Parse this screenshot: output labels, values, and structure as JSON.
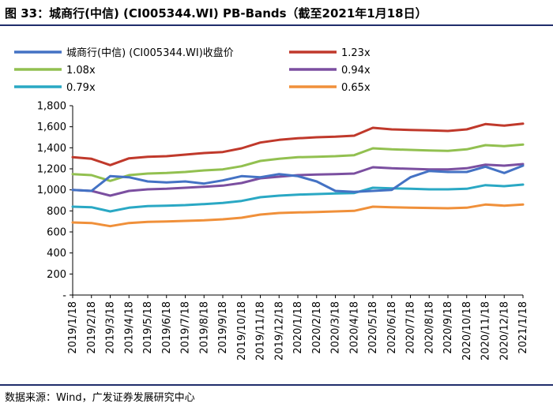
{
  "figure_title": "图 33：城商行(中信) (CI005344.WI) PB-Bands（截至2021年1月18日）",
  "source": "数据来源：Wind，广发证券发展研究中心",
  "chart_data": {
    "type": "line",
    "title": "城商行(中信) (CI005344.WI) PB-Bands",
    "xlabel": "",
    "ylabel": "",
    "ylim": [
      0,
      1800
    ],
    "yticks": [
      0,
      200,
      400,
      600,
      800,
      1000,
      1200,
      1400,
      1600,
      1800
    ],
    "ytick_labels": [
      "-",
      "200",
      "400",
      "600",
      "800",
      "1,000",
      "1,200",
      "1,400",
      "1,600",
      "1,800"
    ],
    "categories": [
      "2019/1/18",
      "2019/2/18",
      "2019/3/18",
      "2019/4/18",
      "2019/5/18",
      "2019/6/18",
      "2019/7/18",
      "2019/8/18",
      "2019/9/18",
      "2019/10/18",
      "2019/11/18",
      "2019/12/18",
      "2020/1/18",
      "2020/2/18",
      "2020/3/18",
      "2020/4/18",
      "2020/5/18",
      "2020/6/18",
      "2020/7/18",
      "2020/8/18",
      "2020/9/18",
      "2020/10/18",
      "2020/11/18",
      "2020/12/18",
      "2021/1/18"
    ],
    "legend_position": "top",
    "series": [
      {
        "name": "城商行(中信) (CI005344.WI)收盘价",
        "color": "#4472c4",
        "values": [
          1000,
          990,
          1130,
          1120,
          1080,
          1070,
          1080,
          1060,
          1090,
          1130,
          1120,
          1150,
          1130,
          1080,
          990,
          980,
          990,
          1000,
          1120,
          1180,
          1170,
          1170,
          1220,
          1160,
          1230
        ]
      },
      {
        "name": "1.23x",
        "color": "#c0392b",
        "values": [
          1310,
          1295,
          1235,
          1300,
          1315,
          1320,
          1335,
          1350,
          1360,
          1395,
          1450,
          1475,
          1490,
          1500,
          1505,
          1515,
          1590,
          1575,
          1570,
          1565,
          1560,
          1575,
          1625,
          1610,
          1630
        ]
      },
      {
        "name": "1.08x",
        "color": "#92c050",
        "values": [
          1150,
          1140,
          1085,
          1140,
          1155,
          1160,
          1170,
          1185,
          1195,
          1225,
          1275,
          1295,
          1310,
          1315,
          1320,
          1330,
          1395,
          1385,
          1380,
          1375,
          1370,
          1385,
          1425,
          1415,
          1430
        ]
      },
      {
        "name": "0.94x",
        "color": "#7b4fa0",
        "values": [
          1000,
          990,
          945,
          990,
          1005,
          1010,
          1020,
          1030,
          1040,
          1065,
          1110,
          1125,
          1140,
          1145,
          1150,
          1155,
          1215,
          1205,
          1200,
          1195,
          1195,
          1205,
          1240,
          1230,
          1245
        ]
      },
      {
        "name": "0.79x",
        "color": "#2aa8c4",
        "values": [
          840,
          835,
          795,
          830,
          845,
          850,
          855,
          865,
          875,
          895,
          930,
          945,
          955,
          960,
          965,
          970,
          1020,
          1015,
          1010,
          1005,
          1005,
          1010,
          1045,
          1035,
          1050
        ]
      },
      {
        "name": "0.65x",
        "color": "#f0903a",
        "values": [
          690,
          685,
          655,
          685,
          695,
          700,
          705,
          710,
          720,
          735,
          765,
          780,
          785,
          790,
          795,
          800,
          840,
          835,
          830,
          828,
          825,
          830,
          860,
          850,
          860
        ]
      }
    ]
  }
}
